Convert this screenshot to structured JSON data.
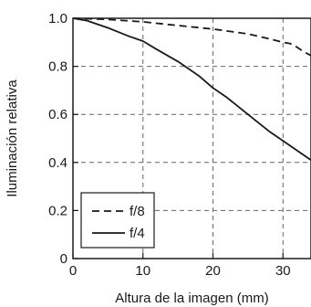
{
  "chart_data": {
    "type": "line",
    "title": "",
    "xlabel": "Altura de la imagen (mm)",
    "ylabel": "Iluminación relativa",
    "xlim": [
      0,
      34
    ],
    "ylim": [
      0,
      1.0
    ],
    "xticks": [
      0,
      10,
      20,
      30
    ],
    "yticks": [
      0,
      0.2,
      0.4,
      0.6,
      0.8,
      1.0
    ],
    "xtick_labels": [
      "0",
      "10",
      "20",
      "30"
    ],
    "ytick_labels": [
      "0",
      "0.2",
      "0.4",
      "0.6",
      "0.8",
      "1.0"
    ],
    "grid": true,
    "legend_position": "bottom-left",
    "series": [
      {
        "name": "f/8",
        "style": "dashed",
        "color": "#1a1a1a",
        "x": [
          0,
          5,
          10,
          15,
          20,
          25,
          28,
          30,
          31,
          32,
          33,
          34
        ],
        "y": [
          1.0,
          0.995,
          0.985,
          0.97,
          0.955,
          0.935,
          0.915,
          0.9,
          0.895,
          0.88,
          0.86,
          0.845
        ]
      },
      {
        "name": "f/4",
        "style": "solid",
        "color": "#1a1a1a",
        "x": [
          0,
          2,
          5,
          8,
          10,
          12,
          15,
          18,
          20,
          22,
          25,
          28,
          30,
          32,
          34
        ],
        "y": [
          1.0,
          0.99,
          0.96,
          0.925,
          0.905,
          0.87,
          0.82,
          0.76,
          0.71,
          0.67,
          0.6,
          0.53,
          0.49,
          0.45,
          0.41
        ]
      }
    ]
  }
}
